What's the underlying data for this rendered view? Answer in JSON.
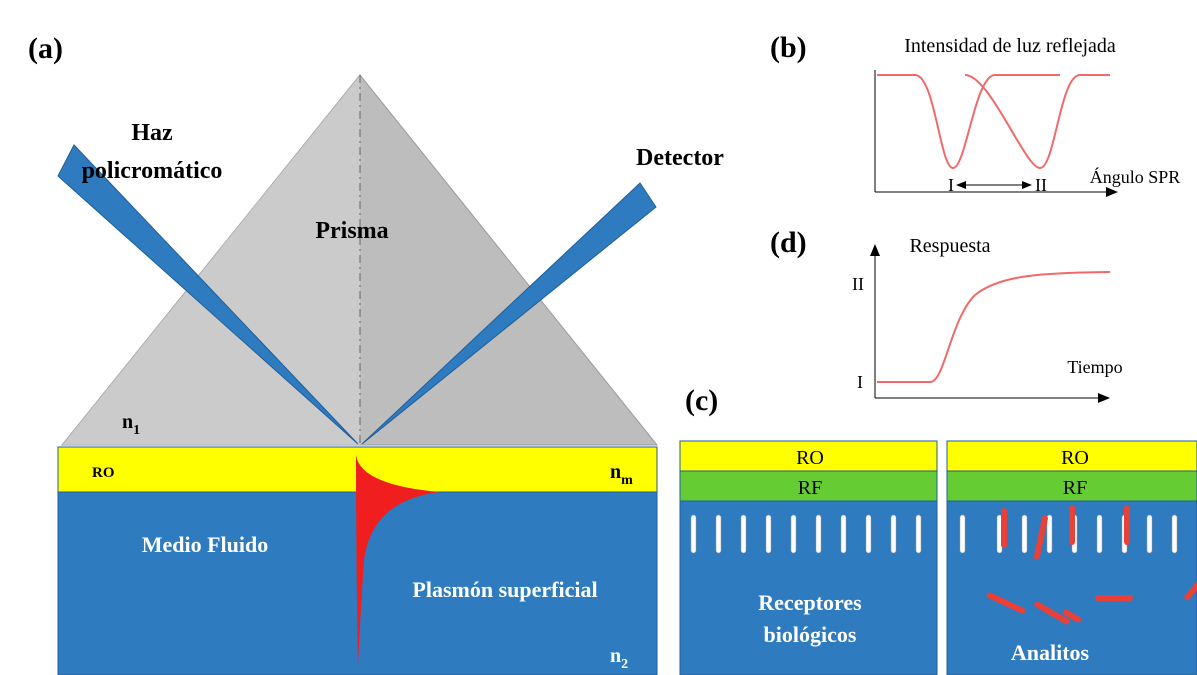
{
  "panel_a": {
    "label": "(a)",
    "beam_in": [
      "Haz",
      "policromático"
    ],
    "prism": "Prisma",
    "detector": "Detector",
    "n1": {
      "base": "n",
      "sub": "1"
    },
    "metal_layer": "RO",
    "nm": {
      "base": "n",
      "sub": "m"
    },
    "medium": "Medio Fluido",
    "plasmon": "Plasmón superficial",
    "n2": {
      "base": "n",
      "sub": "2"
    }
  },
  "panel_b": {
    "label": "(b)",
    "title": "Intensidad de luz reflejada",
    "x_label": "Ángulo SPR",
    "marker_1": "I",
    "marker_2": "II"
  },
  "panel_d": {
    "label": "(d)",
    "title": "Respuesta",
    "level_2": "II",
    "level_1": "I",
    "x_label": "Tiempo"
  },
  "panel_c": {
    "label": "(c)",
    "left": {
      "top_layer": "RO",
      "functional_layer": "RF",
      "caption": [
        "Receptores",
        "biológicos"
      ]
    },
    "right": {
      "top_layer": "RO",
      "functional_layer": "RF",
      "caption": "Analitos"
    }
  }
}
